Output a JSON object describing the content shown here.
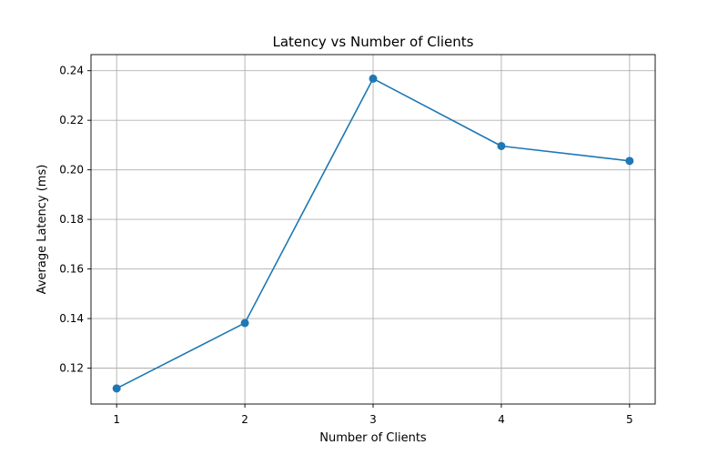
{
  "chart_data": {
    "type": "line",
    "title": "Latency vs Number of Clients",
    "xlabel": "Number of Clients",
    "ylabel": "Average Latency (ms)",
    "x": [
      1,
      2,
      3,
      4,
      5
    ],
    "series": [
      {
        "values": [
          0.1118,
          0.1382,
          0.2368,
          0.2096,
          0.2036
        ],
        "color": "#1f77b4",
        "marker": "circle"
      }
    ],
    "xlim": [
      0.8,
      5.2
    ],
    "ylim": [
      0.1055,
      0.2465
    ],
    "xticks": [
      1,
      2,
      3,
      4,
      5
    ],
    "xtick_labels": [
      "1",
      "2",
      "3",
      "4",
      "5"
    ],
    "yticks": [
      0.12,
      0.14,
      0.16,
      0.18,
      0.2,
      0.22,
      0.24
    ],
    "ytick_labels": [
      "0.12",
      "0.14",
      "0.16",
      "0.18",
      "0.20",
      "0.22",
      "0.24"
    ],
    "grid": true
  }
}
